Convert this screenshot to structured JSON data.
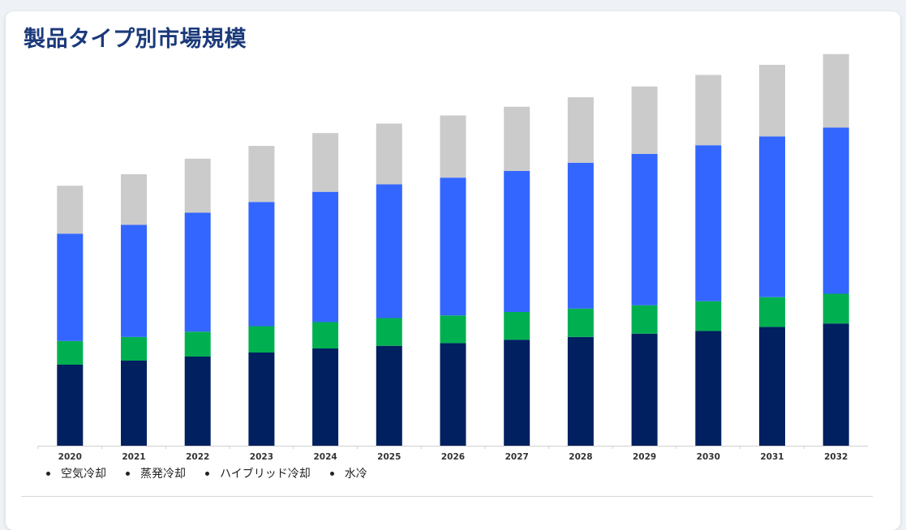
{
  "title": "製品タイプ別市場規模",
  "chart_data": {
    "type": "bar",
    "stacked": true,
    "categories": [
      "2020",
      "2021",
      "2022",
      "2023",
      "2024",
      "2025",
      "2026",
      "2027",
      "2028",
      "2029",
      "2030",
      "2031",
      "2032"
    ],
    "series": [
      {
        "name": "水冷",
        "color": "#cbcbcb",
        "values": [
          7.1,
          7.5,
          8.0,
          8.3,
          8.7,
          9.0,
          9.2,
          9.5,
          9.7,
          10.0,
          10.4,
          10.6,
          10.9
        ]
      },
      {
        "name": "ハイブリッド冷却",
        "color": "#3366ff",
        "values": [
          15.9,
          16.6,
          17.6,
          18.4,
          19.3,
          19.8,
          20.4,
          20.9,
          21.6,
          22.4,
          23.1,
          23.8,
          24.6
        ]
      },
      {
        "name": "蒸発冷却",
        "color": "#00b050",
        "values": [
          3.5,
          3.5,
          3.7,
          3.9,
          3.9,
          4.1,
          4.1,
          4.1,
          4.2,
          4.2,
          4.4,
          4.4,
          4.4
        ]
      },
      {
        "name": "空気冷却",
        "color": "#002060",
        "values": [
          12.0,
          12.6,
          13.2,
          13.8,
          14.4,
          14.8,
          15.2,
          15.7,
          16.1,
          16.6,
          17.0,
          17.6,
          18.1
        ]
      }
    ],
    "legend_order": [
      "空気冷却",
      "蒸発冷却",
      "ハイブリッド冷却",
      "水冷"
    ],
    "ylim": [
      0,
      60
    ],
    "grid": false,
    "legend_position": "bottom-left"
  }
}
